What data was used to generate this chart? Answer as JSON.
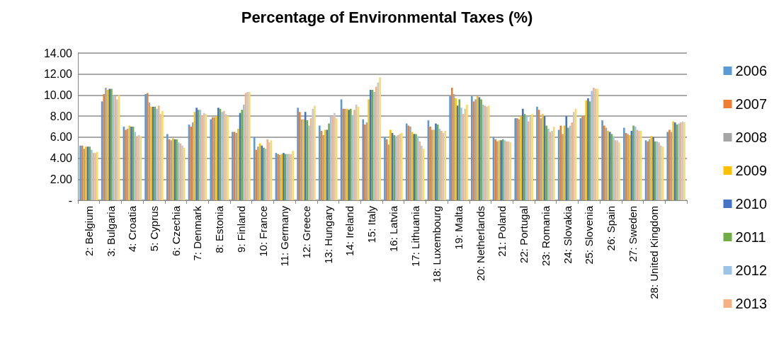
{
  "chart_data": {
    "type": "bar",
    "title": "Percentage of Environmental Taxes (%)",
    "categories": [
      "2: Belgium",
      "3: Bulgaria",
      "4: Croatia",
      "5: Cyprus",
      "6: Czechia",
      "7: Denmark",
      "8: Estonia",
      "9: Finland",
      "10: France",
      "11: Germany",
      "12: Greece",
      "13: Hungary",
      "14: Ireland",
      "15: Italy",
      "16: Latvia",
      "17: Lithuania",
      "18: Luxembourg",
      "19: Malta",
      "20: Netherlands",
      "21: Poland",
      "22: Portugal",
      "23: Romania",
      "24: Slovakia",
      "25: Slovenia",
      "26: Spain",
      "27: Sweden",
      "28: United Kingdom",
      null
    ],
    "series": [
      {
        "name": "2006",
        "color": "#5b9bd5",
        "values": [
          5.2,
          9.4,
          7.0,
          10.1,
          6.3,
          7.2,
          7.7,
          6.5,
          6.0,
          4.5,
          8.8,
          7.1,
          9.6,
          7.7,
          6.0,
          7.3,
          7.6,
          9.9,
          9.9,
          6.0,
          7.8,
          8.9,
          6.7,
          7.8,
          7.6,
          6.9,
          5.7,
          6.5
        ]
      },
      {
        "name": "2007",
        "color": "#ed7d31",
        "values": [
          5.2,
          10.1,
          6.7,
          10.2,
          5.8,
          7.0,
          7.9,
          6.5,
          4.8,
          4.4,
          8.4,
          6.6,
          8.7,
          7.2,
          5.8,
          7.1,
          7.0,
          10.7,
          9.4,
          5.8,
          7.8,
          8.6,
          7.1,
          8.0,
          7.1,
          6.4,
          5.6,
          6.7
        ]
      },
      {
        "name": "2008",
        "color": "#a5a5a5",
        "values": [
          4.9,
          10.7,
          6.8,
          9.3,
          5.7,
          7.4,
          7.9,
          6.4,
          5.1,
          4.3,
          7.7,
          6.2,
          8.7,
          7.4,
          5.3,
          7.0,
          6.7,
          10.1,
          9.6,
          5.6,
          7.7,
          7.8,
          6.3,
          8.0,
          6.9,
          6.3,
          5.8,
          6.5
        ]
      },
      {
        "name": "2009",
        "color": "#ffc000",
        "values": [
          5.1,
          10.5,
          7.1,
          8.9,
          5.9,
          8.4,
          8.0,
          6.8,
          5.4,
          4.4,
          7.7,
          6.7,
          8.7,
          9.6,
          6.7,
          6.5,
          6.7,
          9.7,
          9.9,
          5.7,
          8.0,
          8.2,
          7.1,
          9.5,
          6.6,
          6.2,
          6.1,
          7.5
        ]
      },
      {
        "name": "2010",
        "color": "#4472c4",
        "values": [
          5.1,
          10.6,
          7.0,
          8.9,
          5.8,
          8.8,
          8.8,
          8.3,
          5.2,
          4.5,
          8.4,
          6.7,
          8.6,
          10.5,
          6.4,
          6.3,
          7.3,
          9.0,
          9.8,
          5.7,
          8.7,
          8.0,
          8.0,
          9.7,
          6.5,
          6.6,
          6.0,
          7.4
        ]
      },
      {
        "name": "2011",
        "color": "#70ad47",
        "values": [
          5.1,
          10.6,
          7.0,
          8.9,
          5.8,
          8.6,
          8.7,
          8.6,
          5.0,
          4.4,
          7.6,
          7.3,
          8.7,
          10.5,
          6.2,
          6.3,
          7.2,
          9.6,
          9.6,
          5.8,
          8.2,
          7.1,
          6.9,
          9.4,
          6.3,
          7.1,
          5.6,
          7.2
        ]
      },
      {
        "name": "2012",
        "color": "#9dc3e6",
        "values": [
          4.8,
          10.0,
          6.5,
          8.7,
          5.5,
          8.6,
          8.4,
          9.1,
          4.9,
          4.4,
          7.1,
          8.0,
          8.1,
          10.3,
          6.1,
          6.1,
          6.8,
          8.8,
          9.1,
          5.7,
          8.0,
          6.8,
          7.1,
          10.4,
          6.1,
          7.0,
          5.6,
          7.3
        ]
      },
      {
        "name": "2013",
        "color": "#f4b183",
        "values": [
          4.5,
          9.9,
          6.1,
          9.0,
          5.4,
          8.1,
          8.5,
          10.2,
          5.8,
          4.4,
          7.8,
          8.0,
          8.6,
          10.8,
          6.2,
          5.6,
          6.6,
          8.2,
          9.0,
          5.6,
          7.5,
          6.5,
          7.4,
          10.7,
          5.7,
          6.7,
          5.5,
          7.4
        ]
      },
      {
        "color": "#c9c9c9",
        "values": [
          4.5,
          9.6,
          6.2,
          8.2,
          5.2,
          8.3,
          8.2,
          10.3,
          5.5,
          4.4,
          8.7,
          8.3,
          9.1,
          11.2,
          6.3,
          5.2,
          6.4,
          8.7,
          8.9,
          5.6,
          8.0,
          6.6,
          8.4,
          10.6,
          5.7,
          6.6,
          5.2,
          7.5
        ]
      },
      {
        "color": "#ffd966",
        "values": [
          4.6,
          10.0,
          6.1,
          8.5,
          5.0,
          8.2,
          8.0,
          10.3,
          5.7,
          4.7,
          9.0,
          7.8,
          8.9,
          11.7,
          6.4,
          4.9,
          6.6,
          9.1,
          9.0,
          5.5,
          8.2,
          7.0,
          8.7,
          10.6,
          5.5,
          6.6,
          5.1,
          7.4
        ]
      }
    ],
    "ylim": [
      0,
      14
    ],
    "yticks": [
      {
        "value": 0,
        "label": "-"
      },
      {
        "value": 2,
        "label": "2.00"
      },
      {
        "value": 4,
        "label": "4.00"
      },
      {
        "value": 6,
        "label": "6.00"
      },
      {
        "value": 8,
        "label": "8.00"
      },
      {
        "value": 10,
        "label": "10.00"
      },
      {
        "value": 12,
        "label": "12.00"
      },
      {
        "value": 14,
        "label": "14.00"
      }
    ],
    "grid": "y",
    "legend": "right"
  }
}
